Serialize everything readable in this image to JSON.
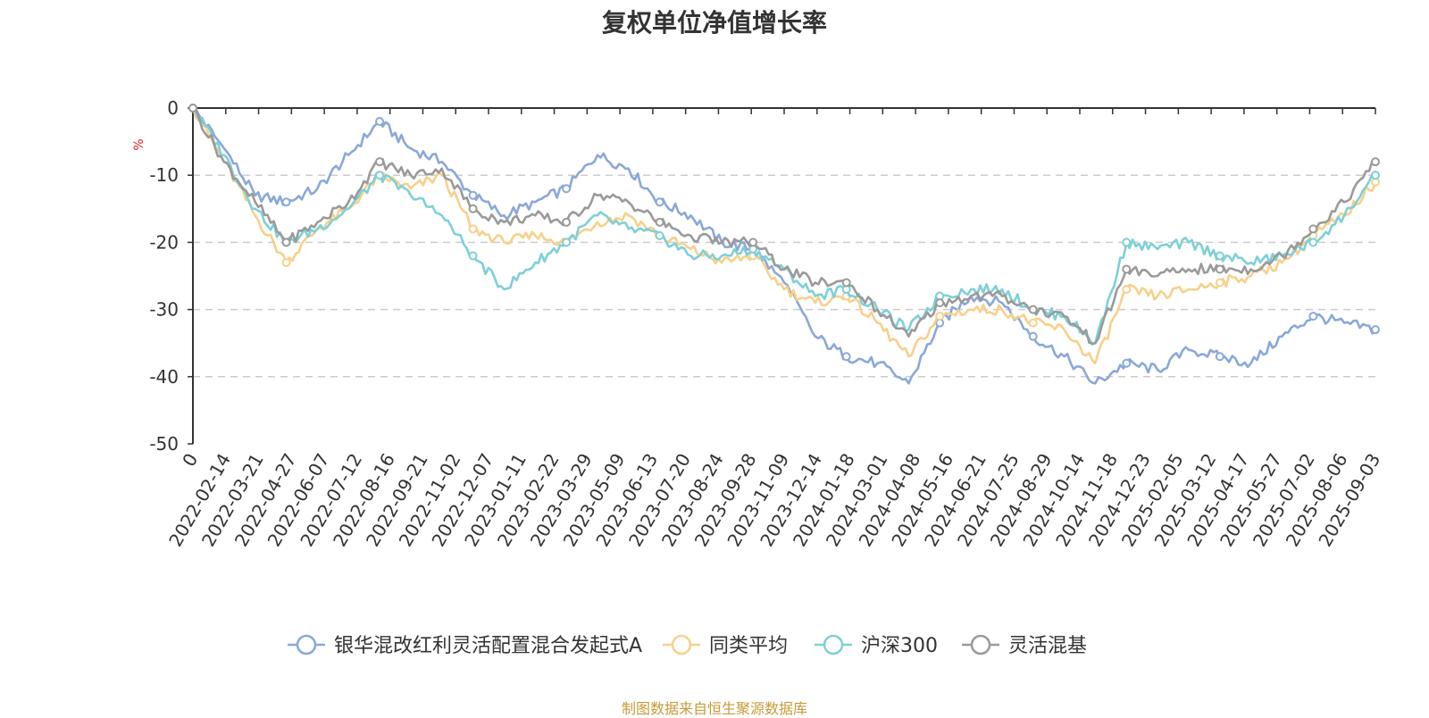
{
  "title": "复权单位净值增长率",
  "source_note": "制图数据来自恒生聚源数据库",
  "chart_data": {
    "type": "line",
    "title": "复权单位净值增长率",
    "ylabel": "%",
    "ylim": [
      -50,
      0
    ],
    "yticks": [
      0,
      -10,
      -20,
      -30,
      -40,
      -50
    ],
    "x_ticks": [
      "0",
      "2022-02-14",
      "2022-03-21",
      "2022-04-27",
      "2022-06-07",
      "2022-07-12",
      "2022-08-16",
      "2022-09-21",
      "2022-11-02",
      "2022-12-07",
      "2023-01-11",
      "2023-02-22",
      "2023-03-29",
      "2023-05-09",
      "2023-06-13",
      "2023-07-20",
      "2023-08-24",
      "2023-09-28",
      "2023-11-09",
      "2023-12-14",
      "2024-01-18",
      "2024-03-01",
      "2024-04-08",
      "2024-05-16",
      "2024-06-21",
      "2024-07-25",
      "2024-08-29",
      "2024-10-14",
      "2024-11-18",
      "2024-12-23",
      "2025-02-05",
      "2025-03-12",
      "2025-04-17",
      "2025-05-27",
      "2025-07-02",
      "2025-08-06",
      "2025-09-03"
    ],
    "grid": "horizontal-dashed",
    "legend_position": "bottom",
    "series": [
      {
        "name": "银华混改红利灵活配置混合发起式A",
        "color": "#8aa8d8",
        "values": [
          0,
          -6,
          -13,
          -14,
          -12,
          -7,
          -2,
          -6,
          -8,
          -13,
          -16,
          -14,
          -12,
          -7,
          -9,
          -14,
          -16,
          -20,
          -21,
          -26,
          -34,
          -37,
          -38,
          -41,
          -32,
          -28,
          -29,
          -34,
          -37,
          -41,
          -38,
          -39,
          -36,
          -37,
          -38,
          -34,
          -31,
          -32,
          -33
        ]
      },
      {
        "name": "同类平均",
        "color": "#f8d08a",
        "values": [
          0,
          -8,
          -16,
          -23,
          -18,
          -15,
          -10,
          -12,
          -10,
          -18,
          -20,
          -19,
          -20,
          -17,
          -16,
          -19,
          -21,
          -23,
          -22,
          -27,
          -29,
          -28,
          -32,
          -37,
          -31,
          -30,
          -30,
          -32,
          -33,
          -38,
          -27,
          -28,
          -27,
          -26,
          -25,
          -23,
          -19,
          -16,
          -11
        ]
      },
      {
        "name": "沪深300",
        "color": "#7ed0d6",
        "values": [
          0,
          -7,
          -15,
          -20,
          -18,
          -15,
          -10,
          -13,
          -16,
          -22,
          -27,
          -23,
          -20,
          -16,
          -18,
          -19,
          -22,
          -22,
          -21,
          -24,
          -28,
          -27,
          -30,
          -33,
          -28,
          -27,
          -27,
          -30,
          -31,
          -35,
          -20,
          -21,
          -20,
          -22,
          -23,
          -22,
          -20,
          -16,
          -10
        ]
      },
      {
        "name": "灵活混基",
        "color": "#9a9a9a",
        "values": [
          0,
          -8,
          -14,
          -20,
          -17,
          -14,
          -8,
          -10,
          -9,
          -15,
          -17,
          -16,
          -17,
          -13,
          -14,
          -17,
          -19,
          -20,
          -20,
          -24,
          -26,
          -26,
          -30,
          -34,
          -29,
          -28,
          -28,
          -30,
          -31,
          -35,
          -24,
          -25,
          -24,
          -24,
          -24,
          -22,
          -18,
          -14,
          -8
        ]
      }
    ]
  }
}
